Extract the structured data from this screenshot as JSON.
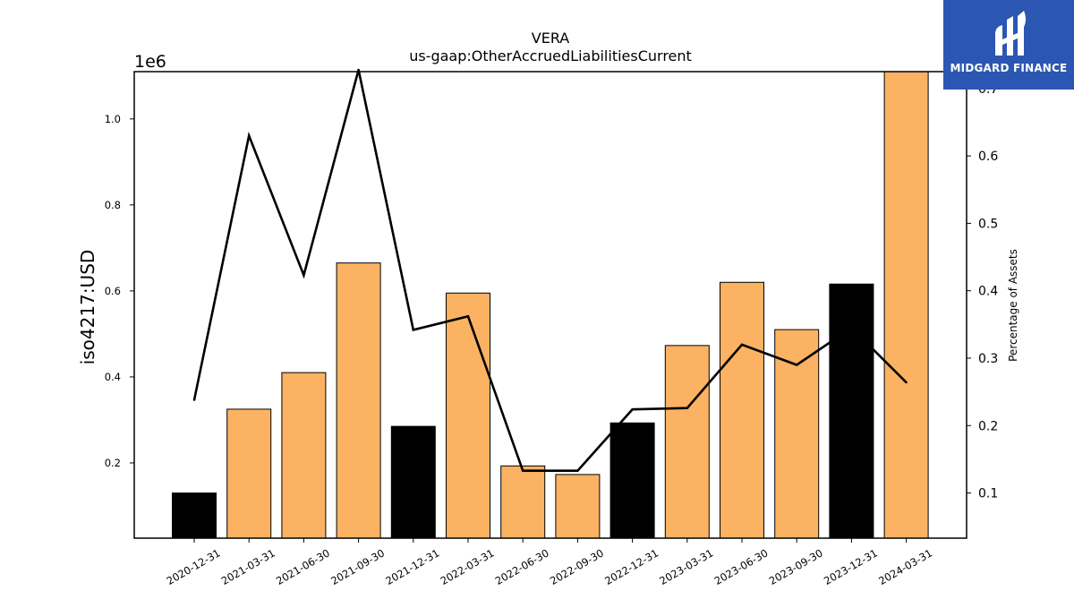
{
  "chart_data": {
    "type": "bar",
    "title": "VERA",
    "subtitle": "us-gaap:OtherAccruedLiabilitiesCurrent",
    "ylabel": "iso4217:USD",
    "y_offset_label": "1e6",
    "y2label": "Percentage of Assets",
    "categories": [
      "2020-12-31",
      "2021-03-31",
      "2021-06-30",
      "2021-09-30",
      "2021-12-31",
      "2022-03-31",
      "2022-06-30",
      "2022-09-30",
      "2022-12-31",
      "2023-03-31",
      "2023-06-30",
      "2023-09-30",
      "2023-12-31",
      "2024-03-31"
    ],
    "values": [
      0.13,
      0.325,
      0.41,
      0.665,
      0.285,
      0.595,
      0.193,
      0.173,
      0.293,
      0.473,
      0.62,
      0.51,
      0.616,
      1.15
    ],
    "bar_colors": [
      "#000000",
      "#fbb262",
      "#fbb262",
      "#fbb262",
      "#000000",
      "#fbb262",
      "#fbb262",
      "#fbb262",
      "#000000",
      "#fbb262",
      "#fbb262",
      "#fbb262",
      "#000000",
      "#fbb262"
    ],
    "ylim": [
      0.025,
      1.11
    ],
    "yticks": [
      "0.2",
      "0.4",
      "0.6",
      "0.8",
      "1.0"
    ],
    "line": {
      "name": "Percentage of Assets",
      "values": [
        0.238,
        0.63,
        0.423,
        0.735,
        0.342,
        0.362,
        0.133,
        0.133,
        0.224,
        0.226,
        0.32,
        0.29,
        0.345,
        0.264
      ],
      "color": "#000000"
    },
    "y2lim": [
      0.033,
      0.725
    ],
    "y2ticks": [
      "0.1",
      "0.2",
      "0.3",
      "0.4",
      "0.5",
      "0.6",
      "0.7"
    ],
    "grid": false
  },
  "logo": {
    "text": "MIDGARD FINANCE",
    "background": "#2b57b3"
  }
}
